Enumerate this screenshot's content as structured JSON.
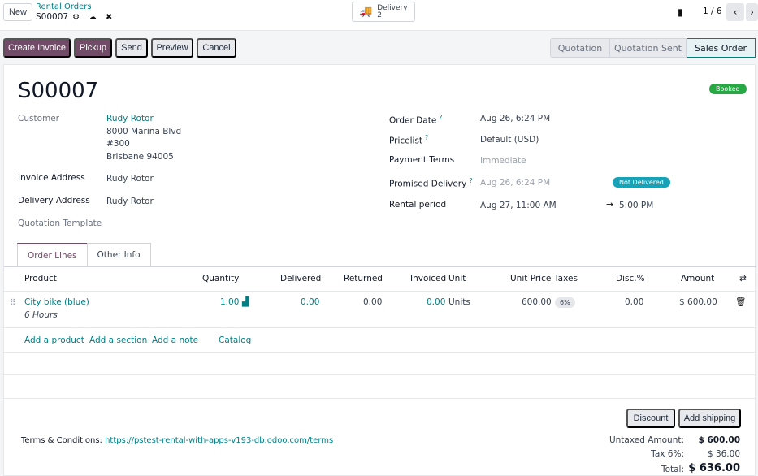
{
  "topbar": {
    "new_label": "New",
    "breadcrumb_parent": "Rental Orders",
    "breadcrumb_current": "S00007",
    "delivery_label": "Delivery",
    "delivery_count": "2",
    "pager": "1 / 6"
  },
  "actions": {
    "create_invoice": "Create Invoice",
    "pickup": "Pickup",
    "send": "Send",
    "preview": "Preview",
    "cancel": "Cancel"
  },
  "status": {
    "stages": [
      "Quotation",
      "Quotation Sent",
      "Sales Order"
    ],
    "active": "Sales Order"
  },
  "order": {
    "name": "S00007",
    "state_badge": "Booked",
    "customer_label": "Customer",
    "customer_name": "Rudy Rotor",
    "customer_address": [
      "8000 Marina Blvd",
      "#300",
      "Brisbane 94005"
    ],
    "invoice_address_label": "Invoice Address",
    "invoice_address": "Rudy Rotor",
    "delivery_address_label": "Delivery Address",
    "delivery_address": "Rudy Rotor",
    "quotation_template_label": "Quotation Template",
    "order_date_label": "Order Date",
    "order_date": "Aug 26, 6:24 PM",
    "pricelist_label": "Pricelist",
    "pricelist": "Default (USD)",
    "payment_terms_label": "Payment Terms",
    "payment_terms_placeholder": "Immediate",
    "promised_delivery_label": "Promised Delivery",
    "promised_delivery": "Aug 26, 6:24 PM",
    "delivery_badge": "Not Delivered",
    "rental_period_label": "Rental period",
    "rental_start": "Aug 27, 11:00 AM",
    "rental_arrow": "→",
    "rental_end": "5:00 PM"
  },
  "tabs": [
    "Order Lines",
    "Other Info"
  ],
  "lines": {
    "headers": {
      "product": "Product",
      "quantity": "Quantity",
      "delivered": "Delivered",
      "returned": "Returned",
      "invoiced": "Invoiced",
      "unit": "Unit",
      "unit_price": "Unit Price",
      "taxes": "Taxes",
      "disc": "Disc.%",
      "amount": "Amount"
    },
    "rows": [
      {
        "product": "City bike (blue)",
        "description": "6 Hours",
        "quantity": "1.00",
        "delivered": "0.00",
        "returned": "0.00",
        "invoiced": "0.00",
        "unit": "Units",
        "unit_price": "600.00",
        "tax": "6%",
        "disc": "0.00",
        "amount": "$ 600.00"
      }
    ],
    "add_product": "Add a product",
    "add_section": "Add a section",
    "add_note": "Add a note",
    "catalog": "Catalog"
  },
  "footer": {
    "discount": "Discount",
    "add_shipping": "Add shipping",
    "terms_label": "Terms & Conditions:",
    "terms_link": "https://pstest-rental-with-apps-v193-db.odoo.com/terms",
    "untaxed_label": "Untaxed Amount:",
    "untaxed_value": "$ 600.00",
    "tax_label": "Tax 6%:",
    "tax_value": "$ 36.00",
    "total_label": "Total:",
    "total_value": "$ 636.00"
  },
  "colors": {
    "primary": "#714b67",
    "link": "#017e84",
    "success": "#28a745",
    "info": "#17a2b8"
  }
}
